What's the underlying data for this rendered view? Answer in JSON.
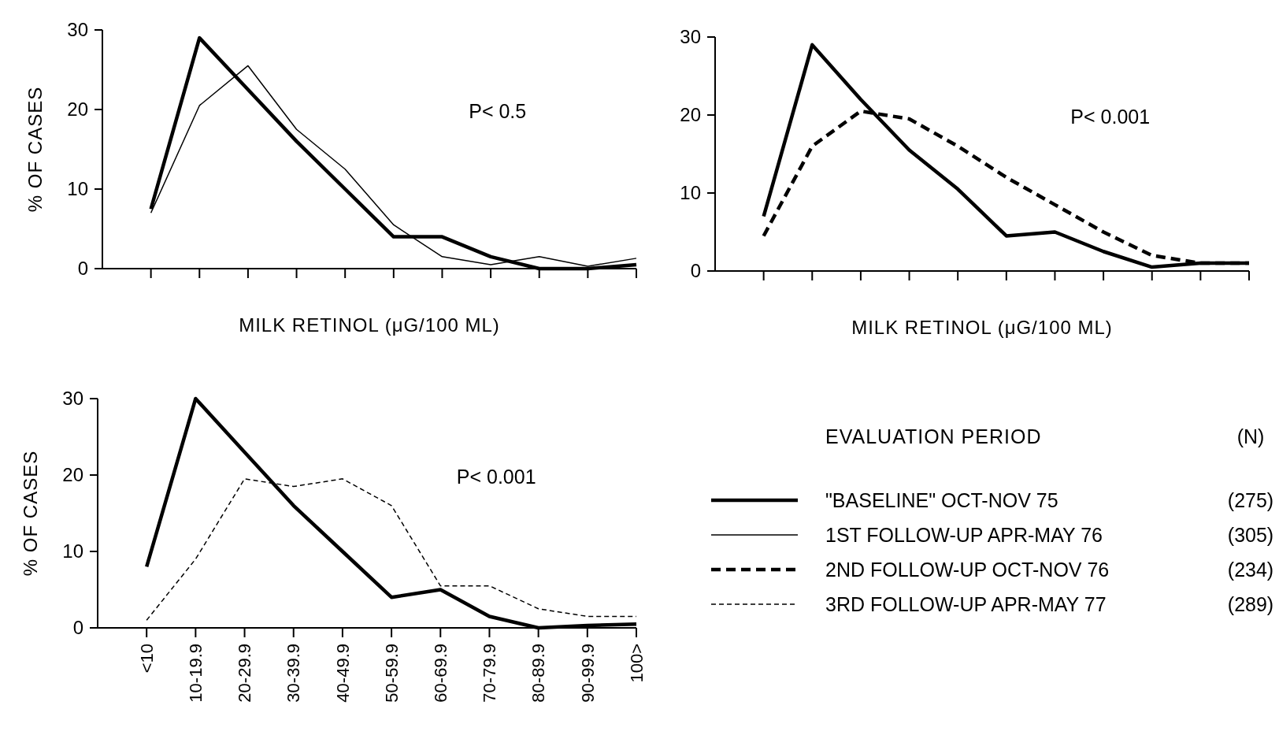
{
  "chart_data": [
    {
      "type": "line",
      "ylabel": "% OF CASES",
      "xlabel": "MILK RETINOL (μG/100 ML)",
      "categories": [
        null,
        null,
        null,
        null,
        null,
        null,
        null,
        null,
        null,
        null,
        null
      ],
      "ylim": [
        0,
        30
      ],
      "yticks": [
        0,
        10,
        20,
        30
      ],
      "tick_labels": "y",
      "annotations": [
        "P< 0.5"
      ],
      "series": [
        {
          "color": "#000000",
          "line_style": "solid",
          "values": [
            7.5,
            29,
            22.5,
            16,
            10,
            4,
            4,
            1.5,
            0,
            0,
            0.5
          ]
        },
        {
          "color": "#000000",
          "line_style": "solid",
          "values": [
            7,
            20.5,
            25.5,
            17.5,
            12.5,
            5.5,
            1.5,
            0.5,
            1.5,
            0.3,
            1.3
          ]
        }
      ]
    },
    {
      "type": "line",
      "xlabel": "MILK RETINOL (μG/100 ML)",
      "categories": [
        null,
        null,
        null,
        null,
        null,
        null,
        null,
        null,
        null,
        null,
        null
      ],
      "ylim": [
        0,
        30
      ],
      "yticks": [
        0,
        10,
        20,
        30
      ],
      "tick_labels": "y",
      "annotations": [
        "P< 0.001"
      ],
      "series": [
        {
          "color": "#000000",
          "line_style": "solid",
          "values": [
            7,
            29,
            22,
            15.5,
            10.5,
            4.5,
            5,
            2.5,
            0.5,
            1,
            1
          ]
        },
        {
          "color": "#000000",
          "line_style": "dashed",
          "values": [
            4.5,
            16,
            20.5,
            19.5,
            16,
            12,
            8.5,
            5,
            2,
            1,
            1
          ]
        }
      ]
    },
    {
      "type": "line",
      "ylabel": "% OF CASES",
      "categories": [
        "<10",
        "10-19.9",
        "20-29.9",
        "30-39.9",
        "40-49.9",
        "50-59.9",
        "60-69.9",
        "70-79.9",
        "80-89.9",
        "90-99.9",
        "100>"
      ],
      "ylim": [
        0,
        30
      ],
      "yticks": [
        0,
        10,
        20,
        30
      ],
      "annotations": [
        "P< 0.001"
      ],
      "series": [
        {
          "color": "#000000",
          "line_style": "solid",
          "values": [
            8,
            30,
            23,
            16,
            10,
            4,
            5,
            1.5,
            0,
            0.3,
            0.5
          ]
        },
        {
          "color": "#000000",
          "line_style": "dashed",
          "values": [
            1,
            9,
            19.5,
            18.5,
            19.5,
            16,
            5.5,
            5.5,
            2.5,
            1.5,
            1.5
          ]
        }
      ]
    },
    {
      "type": "other",
      "legend_title": "EVALUATION PERIOD",
      "annotations": [
        "(N)",
        "(275)",
        "(305)",
        "(234)",
        "(289)"
      ],
      "series": [
        {
          "name": "\"BASELINE\" OCT-NOV 75",
          "color": "#000000",
          "line_style": "solid"
        },
        {
          "name": "1ST FOLLOW-UP APR-MAY 76",
          "color": "#000000",
          "line_style": "solid"
        },
        {
          "name": "2ND FOLLOW-UP OCT-NOV 76",
          "color": "#000000",
          "line_style": "dashed"
        },
        {
          "name": "3RD FOLLOW-UP APR-MAY 77",
          "color": "#000000",
          "line_style": "dashed"
        }
      ]
    }
  ]
}
